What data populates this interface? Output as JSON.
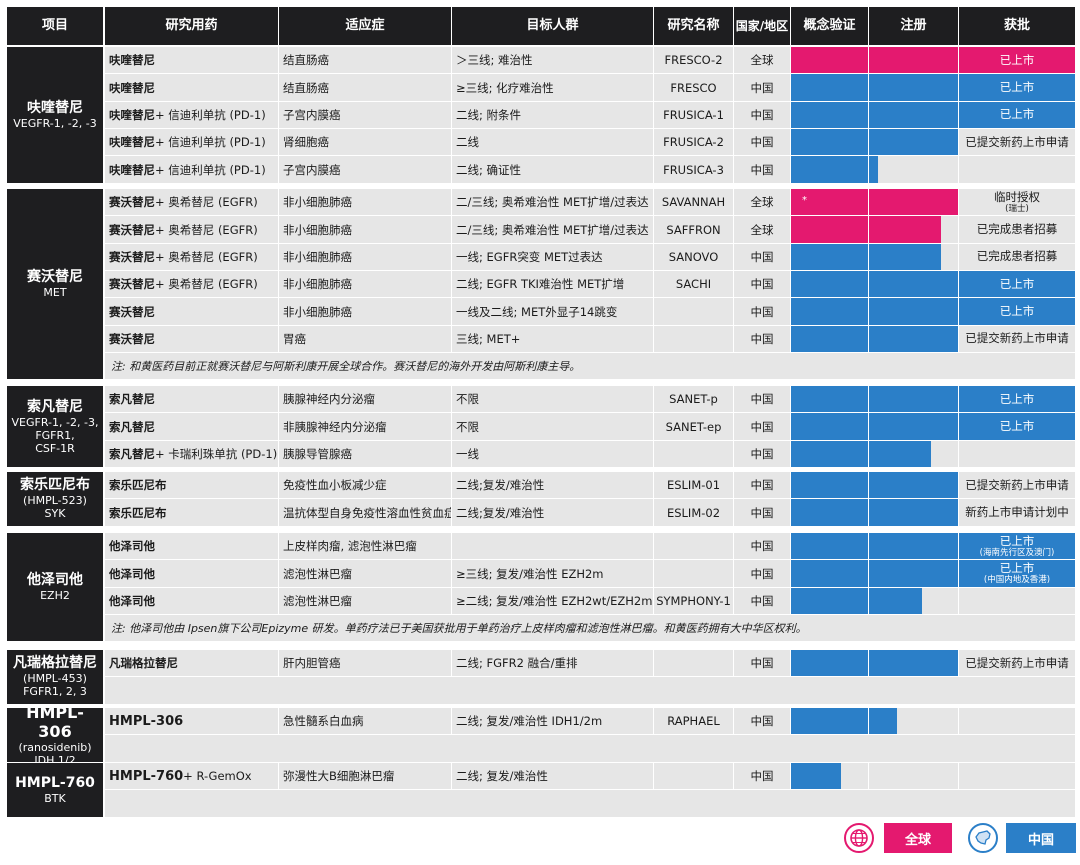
{
  "colors": {
    "global": "#e4196f",
    "china": "#2b7fc8",
    "header": "#1e1e20",
    "cell": "#e6e6e6"
  },
  "headers": [
    "项目",
    "研究用药",
    "适应症",
    "目标人群",
    "研究名称",
    "国家/地区",
    "概念验证",
    "注册",
    "获批"
  ],
  "groups": [
    {
      "name": "呋喹替尼",
      "sub": [
        "VEGFR-1, -2, -3"
      ],
      "rows": [
        {
          "drug": [
            [
              "呋喹替尼",
              true
            ]
          ],
          "ind": "结直肠癌",
          "target": "＞三线; 难治性",
          "study": "FRESCO-2",
          "region": "全球",
          "scope": "global",
          "progress": 3,
          "status": "已上市"
        },
        {
          "drug": [
            [
              "呋喹替尼",
              true
            ]
          ],
          "ind": "结直肠癌",
          "target": "≥三线; 化疗难治性",
          "study": "FRESCO",
          "region": "中国",
          "scope": "china",
          "progress": 3,
          "status": "已上市"
        },
        {
          "drug": [
            [
              "呋喹替尼",
              true
            ],
            [
              " + 信迪利单抗 (PD-1)",
              false
            ]
          ],
          "ind": "子宫内膜癌",
          "target": "二线; 附条件",
          "study": "FRUSICA-1",
          "region": "中国",
          "scope": "china",
          "progress": 3,
          "status": "已上市"
        },
        {
          "drug": [
            [
              "呋喹替尼",
              true
            ],
            [
              " + 信迪利单抗 (PD-1)",
              false
            ]
          ],
          "ind": "肾细胞癌",
          "target": "二线",
          "study": "FRUSICA-2",
          "region": "中国",
          "scope": "china",
          "progress": 2,
          "status": "已提交新药上市申请"
        },
        {
          "drug": [
            [
              "呋喹替尼",
              true
            ],
            [
              " + 信迪利单抗 (PD-1)",
              false
            ]
          ],
          "ind": "子宫内膜癌",
          "target": "二线; 确证性",
          "study": "FRUSICA-3",
          "region": "中国",
          "scope": "china",
          "progress": 1.1,
          "status": ""
        }
      ]
    },
    {
      "name": "赛沃替尼",
      "sub": [
        "MET"
      ],
      "rows": [
        {
          "drug": [
            [
              "赛沃替尼",
              true
            ],
            [
              " + 奥希替尼 (EGFR)",
              false
            ]
          ],
          "ind": "非小细胞肺癌",
          "target": "二/三线; 奥希难治性 MET扩增/过表达",
          "study": "SAVANNAH",
          "region": "全球",
          "scope": "global",
          "progress": 2,
          "status": "临时授权",
          "status_sub": "(瑞士)",
          "mark": "*"
        },
        {
          "drug": [
            [
              "赛沃替尼",
              true
            ],
            [
              " + 奥希替尼 (EGFR)",
              false
            ]
          ],
          "ind": "非小细胞肺癌",
          "target": "二/三线; 奥希难治性 MET扩增/过表达",
          "study": "SAFFRON",
          "region": "全球",
          "scope": "global",
          "progress": 1.81,
          "status": "已完成患者招募"
        },
        {
          "drug": [
            [
              "赛沃替尼",
              true
            ],
            [
              " + 奥希替尼 (EGFR)",
              false
            ]
          ],
          "ind": "非小细胞肺癌",
          "target": "一线; EGFR突变 MET过表达",
          "study": "SANOVO",
          "region": "中国",
          "scope": "china",
          "progress": 1.81,
          "status": "已完成患者招募"
        },
        {
          "drug": [
            [
              "赛沃替尼",
              true
            ],
            [
              " + 奥希替尼 (EGFR)",
              false
            ]
          ],
          "ind": "非小细胞肺癌",
          "target": "二线; EGFR TKI难治性 MET扩增",
          "study": "SACHI",
          "region": "中国",
          "scope": "china",
          "progress": 3,
          "status": "已上市"
        },
        {
          "drug": [
            [
              "赛沃替尼",
              true
            ]
          ],
          "ind": "非小细胞肺癌",
          "target": "一线及二线; MET外显子14跳变",
          "study": "",
          "region": "中国",
          "scope": "china",
          "progress": 3,
          "status": "已上市"
        },
        {
          "drug": [
            [
              "赛沃替尼",
              true
            ]
          ],
          "ind": "胃癌",
          "target": "三线; MET+",
          "study": "",
          "region": "中国",
          "scope": "china",
          "progress": 2,
          "status": "已提交新药上市申请"
        }
      ],
      "note": "注: 和黄医药目前正就赛沃替尼与阿斯利康开展全球合作。赛沃替尼的海外开发由阿斯利康主导。"
    },
    {
      "name": "索凡替尼",
      "sub": [
        "VEGFR-1, -2, -3,",
        "FGFR1,",
        "CSF-1R"
      ],
      "rows": [
        {
          "drug": [
            [
              "索凡替尼",
              true
            ]
          ],
          "ind": "胰腺神经内分泌瘤",
          "target": "不限",
          "study": "SANET-p",
          "region": "中国",
          "scope": "china",
          "progress": 3,
          "status": "已上市"
        },
        {
          "drug": [
            [
              "索凡替尼",
              true
            ]
          ],
          "ind": "非胰腺神经内分泌瘤",
          "target": "不限",
          "study": "SANET-ep",
          "region": "中国",
          "scope": "china",
          "progress": 3,
          "status": "已上市"
        },
        {
          "drug": [
            [
              "索凡替尼",
              true
            ],
            [
              " + 卡瑞利珠单抗 (PD-1)",
              false
            ]
          ],
          "ind": "胰腺导管腺癌",
          "target": "一线",
          "study": "",
          "region": "中国",
          "scope": "china",
          "progress": 1.7,
          "status": ""
        }
      ]
    },
    {
      "name": "索乐匹尼布",
      "sub": [
        "(HMPL-523)",
        "SYK"
      ],
      "rows": [
        {
          "drug": [
            [
              "索乐匹尼布",
              true
            ]
          ],
          "ind": "免疫性血小板减少症",
          "target": "二线;复发/难治性",
          "study": "ESLIM-01",
          "region": "中国",
          "scope": "china",
          "progress": 2,
          "status": "已提交新药上市申请"
        },
        {
          "drug": [
            [
              "索乐匹尼布",
              true
            ]
          ],
          "ind": "温抗体型自身免疫性溶血性贫血症",
          "target": "二线;复发/难治性",
          "study": "ESLIM-02",
          "region": "中国",
          "scope": "china",
          "progress": 2,
          "status": "新药上市申请计划中"
        }
      ]
    },
    {
      "name": "他泽司他",
      "sub": [
        "EZH2"
      ],
      "rows": [
        {
          "drug": [
            [
              "他泽司他",
              true
            ]
          ],
          "ind": "上皮样肉瘤, 滤泡性淋巴瘤",
          "target": "",
          "study": "",
          "region": "中国",
          "scope": "china",
          "progress": 3,
          "status": "已上市",
          "status_sub": "(海南先行区及澳门)"
        },
        {
          "drug": [
            [
              "他泽司他",
              true
            ]
          ],
          "ind": "滤泡性淋巴瘤",
          "target": "≥三线; 复发/难治性 EZH2m",
          "study": "",
          "region": "中国",
          "scope": "china",
          "progress": 3,
          "status": "已上市",
          "status_sub": "(中国内地及香港)"
        },
        {
          "drug": [
            [
              "他泽司他",
              true
            ]
          ],
          "ind": "滤泡性淋巴瘤",
          "target": "≥二线; 复发/难治性 EZH2wt/EZH2m",
          "study": "SYMPHONY-1",
          "region": "中国",
          "scope": "china",
          "progress": 1.6,
          "status": ""
        }
      ],
      "note": "注: 他泽司他由 Ipsen旗下公司Epizyme 研发。单药疗法已于美国获批用于单药治疗上皮样肉瘤和滤泡性淋巴瘤。和黄医药拥有大中华区权利。"
    },
    {
      "name": "凡瑞格拉替尼",
      "sub": [
        "(HMPL-453)",
        "FGFR1, 2, 3"
      ],
      "rows": [
        {
          "drug": [
            [
              "凡瑞格拉替尼",
              true
            ]
          ],
          "ind": "肝内胆管癌",
          "target": "二线; FGFR2 融合/重排",
          "study": "",
          "region": "中国",
          "scope": "china",
          "progress": 2,
          "status": "已提交新药上市申请"
        }
      ]
    },
    {
      "name": "HMPL-306",
      "big": true,
      "sub": [
        "(ranosidenib)",
        "IDH 1/2"
      ],
      "rows": [
        {
          "drug": [
            [
              "HMPL-306",
              "bl"
            ]
          ],
          "ind": "急性髓系白血病",
          "target": "二线; 复发/难治性 IDH1/2m",
          "study": "RAPHAEL",
          "region": "中国",
          "scope": "china",
          "progress": 1.32,
          "status": ""
        }
      ]
    },
    {
      "name": "HMPL-760",
      "sub": [
        "BTK"
      ],
      "rows": [
        {
          "drug": [
            [
              "HMPL-760",
              "bl"
            ],
            [
              " + R-GemOx",
              false
            ]
          ],
          "ind": "弥漫性大B细胞淋巴瘤",
          "target": "二线; 复发/难治性",
          "study": "",
          "region": "中国",
          "scope": "china",
          "progress": 0.65,
          "status": ""
        }
      ]
    }
  ],
  "legend": {
    "global_label": "全球",
    "china_label": "中国",
    "global_icon": "globe-icon",
    "china_icon": "china-map-icon"
  }
}
